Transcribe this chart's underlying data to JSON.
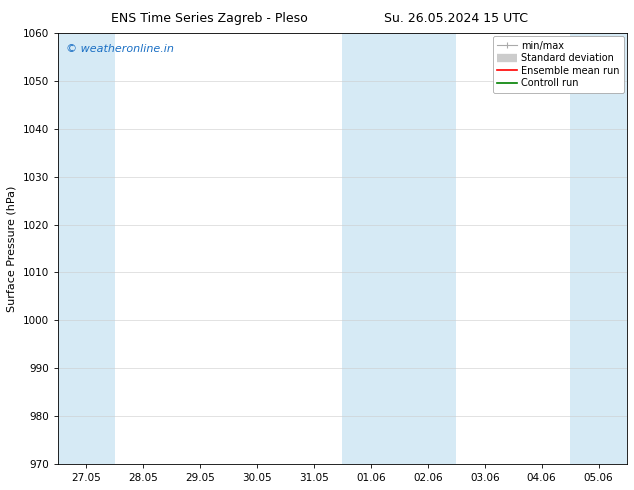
{
  "title_left": "ENS Time Series Zagreb - Pleso",
  "title_right": "Su. 26.05.2024 15 UTC",
  "ylabel": "Surface Pressure (hPa)",
  "ylim": [
    970,
    1060
  ],
  "yticks": [
    970,
    980,
    990,
    1000,
    1010,
    1020,
    1030,
    1040,
    1050,
    1060
  ],
  "xtick_labels": [
    "27.05",
    "28.05",
    "29.05",
    "30.05",
    "31.05",
    "01.06",
    "02.06",
    "03.06",
    "04.06",
    "05.06"
  ],
  "watermark": "© weatheronline.in",
  "watermark_color": "#1a6fc4",
  "background_color": "#ffffff",
  "plot_bg_color": "#ffffff",
  "shaded_bands": [
    {
      "xstart": 0,
      "xend": 1,
      "color": "#d6eaf5"
    },
    {
      "xstart": 5,
      "xend": 7,
      "color": "#d6eaf5"
    },
    {
      "xstart": 8,
      "xend": 9,
      "color": "#d6eaf5"
    }
  ],
  "legend_items": [
    {
      "label": "min/max",
      "color": "#aaaaaa",
      "lw": 1.0
    },
    {
      "label": "Standard deviation",
      "color": "#cccccc",
      "lw": 5
    },
    {
      "label": "Ensemble mean run",
      "color": "#ff0000",
      "lw": 1.2
    },
    {
      "label": "Controll run",
      "color": "#008000",
      "lw": 1.2
    }
  ],
  "font_size_title": 9,
  "font_size_axis": 8,
  "font_size_tick": 7.5,
  "font_size_legend": 7,
  "font_size_watermark": 8
}
